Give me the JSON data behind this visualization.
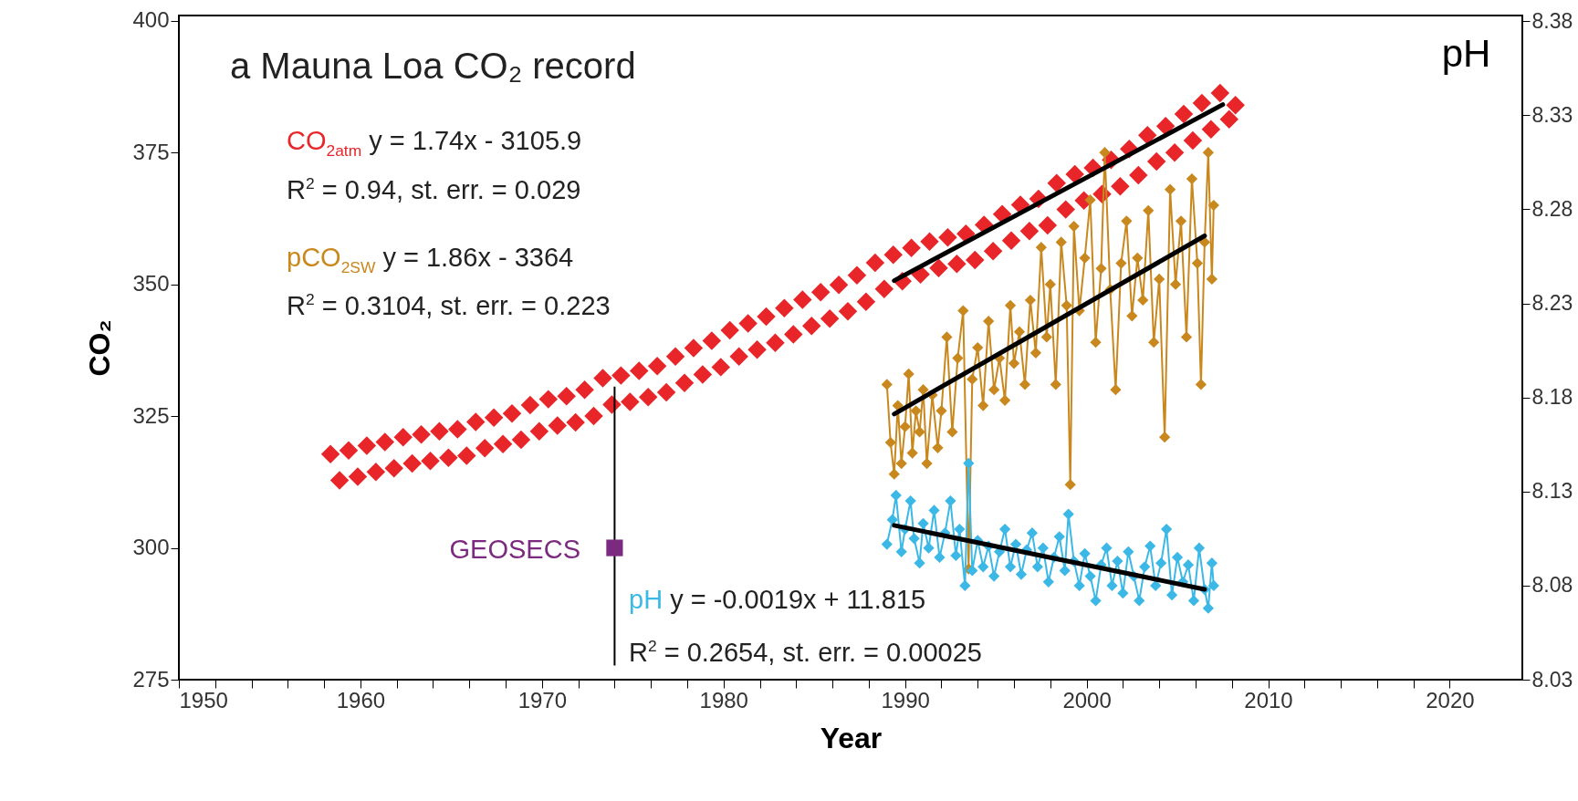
{
  "chart_data": {
    "type": "scatter",
    "title": "a Mauna Loa CO₂ record",
    "xlabel": "Year",
    "ylabel": "CO₂",
    "y2label": "pH",
    "xlim": [
      1950,
      2024
    ],
    "xticks": [
      1950,
      {
        "value": 1952,
        "label": null
      },
      {
        "value": 1954,
        "label": null
      },
      {
        "value": 1956,
        "label": null
      },
      {
        "value": 1958,
        "label": null
      },
      1960,
      {
        "value": 1962,
        "label": null
      },
      {
        "value": 1964,
        "label": null
      },
      {
        "value": 1966,
        "label": null
      },
      {
        "value": 1968,
        "label": null
      },
      1970,
      {
        "value": 1972,
        "label": null
      },
      {
        "value": 1974,
        "label": null
      },
      {
        "value": 1976,
        "label": null
      },
      {
        "value": 1978,
        "label": null
      },
      1980,
      {
        "value": 1982,
        "label": null
      },
      {
        "value": 1984,
        "label": null
      },
      {
        "value": 1986,
        "label": null
      },
      {
        "value": 1988,
        "label": null
      },
      1990,
      {
        "value": 1992,
        "label": null
      },
      {
        "value": 1994,
        "label": null
      },
      {
        "value": 1996,
        "label": null
      },
      {
        "value": 1998,
        "label": null
      },
      2000,
      {
        "value": 2002,
        "label": null
      },
      {
        "value": 2004,
        "label": null
      },
      {
        "value": 2006,
        "label": null
      },
      {
        "value": 2008,
        "label": null
      },
      2010,
      {
        "value": 2012,
        "label": null
      },
      {
        "value": 2014,
        "label": null
      },
      {
        "value": 2016,
        "label": null
      },
      {
        "value": 2018,
        "label": null
      },
      2020
    ],
    "ylim": [
      275,
      401
    ],
    "yticks": [
      275,
      300,
      325,
      350,
      375,
      400
    ],
    "y2lim": [
      8.03,
      8.383
    ],
    "y2ticks": [
      8.03,
      8.08,
      8.13,
      8.18,
      8.23,
      8.28,
      8.33,
      8.38
    ],
    "marker": "diamond",
    "series": [
      {
        "name": "CO$_{2atm}$",
        "color": "#e8262a",
        "x": [
          1958.35,
          1958.85,
          1959.35,
          1959.85,
          1960.35,
          1960.85,
          1961.35,
          1961.85,
          1962.35,
          1962.85,
          1963.35,
          1963.85,
          1964.35,
          1964.85,
          1965.35,
          1965.85,
          1966.35,
          1966.85,
          1967.35,
          1967.85,
          1968.35,
          1968.85,
          1969.35,
          1969.85,
          1970.35,
          1970.85,
          1971.35,
          1971.85,
          1972.35,
          1972.85,
          1973.35,
          1973.85,
          1974.35,
          1974.85,
          1975.35,
          1975.85,
          1976.35,
          1976.85,
          1977.35,
          1977.85,
          1978.35,
          1978.85,
          1979.35,
          1979.85,
          1980.35,
          1980.85,
          1981.35,
          1981.85,
          1982.35,
          1982.85,
          1983.35,
          1983.85,
          1984.35,
          1984.85,
          1985.35,
          1985.85,
          1986.35,
          1986.85,
          1987.35,
          1987.85,
          1988.35,
          1988.85,
          1989.35,
          1989.85,
          1990.35,
          1990.85,
          1991.35,
          1991.85,
          1992.35,
          1992.85,
          1993.35,
          1993.85,
          1994.35,
          1994.85,
          1995.35,
          1995.85,
          1996.35,
          1996.85,
          1997.35,
          1997.85,
          1998.35,
          1998.85,
          1999.35,
          1999.85,
          2000.35,
          2000.85,
          2001.35,
          2001.85,
          2002.35,
          2002.85,
          2003.35,
          2003.85,
          2004.35,
          2004.85,
          2005.35,
          2005.85,
          2006.35,
          2006.85,
          2007.35,
          2007.85,
          2008.2
        ],
        "values": [
          317.8,
          312.8,
          318.5,
          313.5,
          319.4,
          314.4,
          320.1,
          315.1,
          321.0,
          316.0,
          321.5,
          316.5,
          322.1,
          317.1,
          322.5,
          317.5,
          323.9,
          318.9,
          324.7,
          319.7,
          325.5,
          320.5,
          327.1,
          322.1,
          328.2,
          323.2,
          328.8,
          323.8,
          330.0,
          325.0,
          332.2,
          327.2,
          332.7,
          327.7,
          333.6,
          328.6,
          334.5,
          329.5,
          336.3,
          331.3,
          337.9,
          332.9,
          339.3,
          334.3,
          341.3,
          336.3,
          342.6,
          337.6,
          343.9,
          338.9,
          345.5,
          340.5,
          347.1,
          342.1,
          348.5,
          343.5,
          349.9,
          344.9,
          351.7,
          346.7,
          354.1,
          349.1,
          355.6,
          350.6,
          356.9,
          351.9,
          358.1,
          353.1,
          358.9,
          353.9,
          359.6,
          354.6,
          361.3,
          356.3,
          363.3,
          358.3,
          365.1,
          360.1,
          366.2,
          361.2,
          369.2,
          364.2,
          370.9,
          365.9,
          372.1,
          367.1,
          373.6,
          368.6,
          375.7,
          370.7,
          378.3,
          373.3,
          380.0,
          375.0,
          382.3,
          377.3,
          384.4,
          379.4,
          386.3,
          381.3,
          384.0
        ]
      },
      {
        "name": "pCO$_{2SW}$",
        "type": "line",
        "color": "#c8881e",
        "x": [
          1989.0,
          1989.2,
          1989.4,
          1989.6,
          1989.8,
          1990.0,
          1990.2,
          1990.4,
          1990.6,
          1990.8,
          1991.0,
          1991.2,
          1991.5,
          1991.8,
          1992.0,
          1992.3,
          1992.6,
          1992.9,
          1993.2,
          1993.5,
          1993.7,
          1994.0,
          1994.3,
          1994.6,
          1994.9,
          1995.2,
          1995.5,
          1995.8,
          1996.0,
          1996.3,
          1996.6,
          1996.9,
          1997.2,
          1997.5,
          1997.8,
          1998.0,
          1998.3,
          1998.6,
          1998.9,
          1999.1,
          1999.3,
          1999.6,
          1999.9,
          2000.2,
          2000.5,
          2000.8,
          2001.0,
          2001.3,
          2001.6,
          2001.9,
          2002.2,
          2002.5,
          2002.8,
          2003.1,
          2003.4,
          2003.7,
          2004.0,
          2004.3,
          2004.6,
          2004.9,
          2005.2,
          2005.5,
          2005.8,
          2006.1,
          2006.3,
          2006.5,
          2006.7,
          2006.9,
          2007.0
        ],
        "values": [
          331,
          320,
          314,
          327,
          316,
          323,
          333,
          318,
          326,
          322,
          330,
          316,
          329,
          319,
          326,
          340,
          322,
          336,
          345,
          296,
          332,
          338,
          327,
          343,
          330,
          336,
          328,
          346,
          335,
          341,
          331,
          347,
          337,
          357,
          340,
          350,
          331,
          358,
          346,
          312,
          361,
          345,
          355,
          366,
          339,
          353,
          375,
          349,
          330,
          354,
          362,
          344,
          355,
          347,
          364,
          339,
          351,
          321,
          368,
          350,
          362,
          340,
          370,
          354,
          331,
          358,
          375,
          351,
          365
        ]
      },
      {
        "name": "pH",
        "type": "line",
        "axis": "y2",
        "color": "#3bb8e6",
        "x": [
          1989.0,
          1989.3,
          1989.5,
          1989.8,
          1990.0,
          1990.3,
          1990.5,
          1990.8,
          1991.0,
          1991.3,
          1991.6,
          1991.9,
          1992.2,
          1992.5,
          1992.8,
          1993.0,
          1993.3,
          1993.5,
          1993.7,
          1994.0,
          1994.3,
          1994.6,
          1994.9,
          1995.2,
          1995.5,
          1995.8,
          1996.1,
          1996.4,
          1996.7,
          1997.0,
          1997.3,
          1997.6,
          1997.9,
          1998.2,
          1998.5,
          1998.8,
          1999.0,
          1999.3,
          1999.6,
          1999.9,
          2000.2,
          2000.5,
          2000.8,
          2001.1,
          2001.4,
          2001.7,
          2002.0,
          2002.3,
          2002.6,
          2002.9,
          2003.2,
          2003.5,
          2003.8,
          2004.1,
          2004.4,
          2004.7,
          2005.0,
          2005.3,
          2005.6,
          2005.9,
          2006.2,
          2006.5,
          2006.7,
          2006.9,
          2007.0
        ],
        "values": [
          8.102,
          8.115,
          8.128,
          8.098,
          8.11,
          8.125,
          8.105,
          8.092,
          8.113,
          8.1,
          8.12,
          8.095,
          8.108,
          8.125,
          8.096,
          8.11,
          8.08,
          8.145,
          8.088,
          8.104,
          8.09,
          8.101,
          8.085,
          8.098,
          8.11,
          8.09,
          8.102,
          8.086,
          8.099,
          8.108,
          8.09,
          8.1,
          8.082,
          8.095,
          8.106,
          8.088,
          8.118,
          8.093,
          8.08,
          8.097,
          8.085,
          8.072,
          8.091,
          8.1,
          8.08,
          8.093,
          8.076,
          8.098,
          8.085,
          8.072,
          8.09,
          8.101,
          8.08,
          8.092,
          8.11,
          8.075,
          8.095,
          8.082,
          8.091,
          8.072,
          8.1,
          8.078,
          8.068,
          8.092,
          8.08
        ]
      },
      {
        "type": "line",
        "color": "#000000",
        "marker": "none",
        "x": [
          1989.4,
          2007.5
        ],
        "values": [
          350.7,
          384.1
        ]
      },
      {
        "type": "line",
        "color": "#000000",
        "marker": "none",
        "x": [
          1989.4,
          2006.5
        ],
        "values": [
          325.4,
          359.2
        ]
      },
      {
        "type": "line",
        "axis": "y2",
        "color": "#000000",
        "marker": "none",
        "x": [
          1989.4,
          2006.5
        ],
        "values": [
          8.112,
          8.078
        ]
      },
      {
        "name": "GEOSECS",
        "color": "#7b2a7f",
        "marker": "square",
        "x": [
          1974.0
        ],
        "values": [
          300
        ],
        "errors": [
          [
            277.7,
            330.6
          ]
        ]
      }
    ],
    "annotations": [
      "y = 1.74x - 3105.9",
      "R$^{2}$ = 0.94, st. err. = 0.029",
      "y = 1.86x - 3364",
      "R$^{2}$ = 0.3104, st. err. = 0.223",
      "y = -0.0019x + 11.815",
      "R$^{2}$ = 0.2654, st. err. = 0.00025"
    ]
  }
}
